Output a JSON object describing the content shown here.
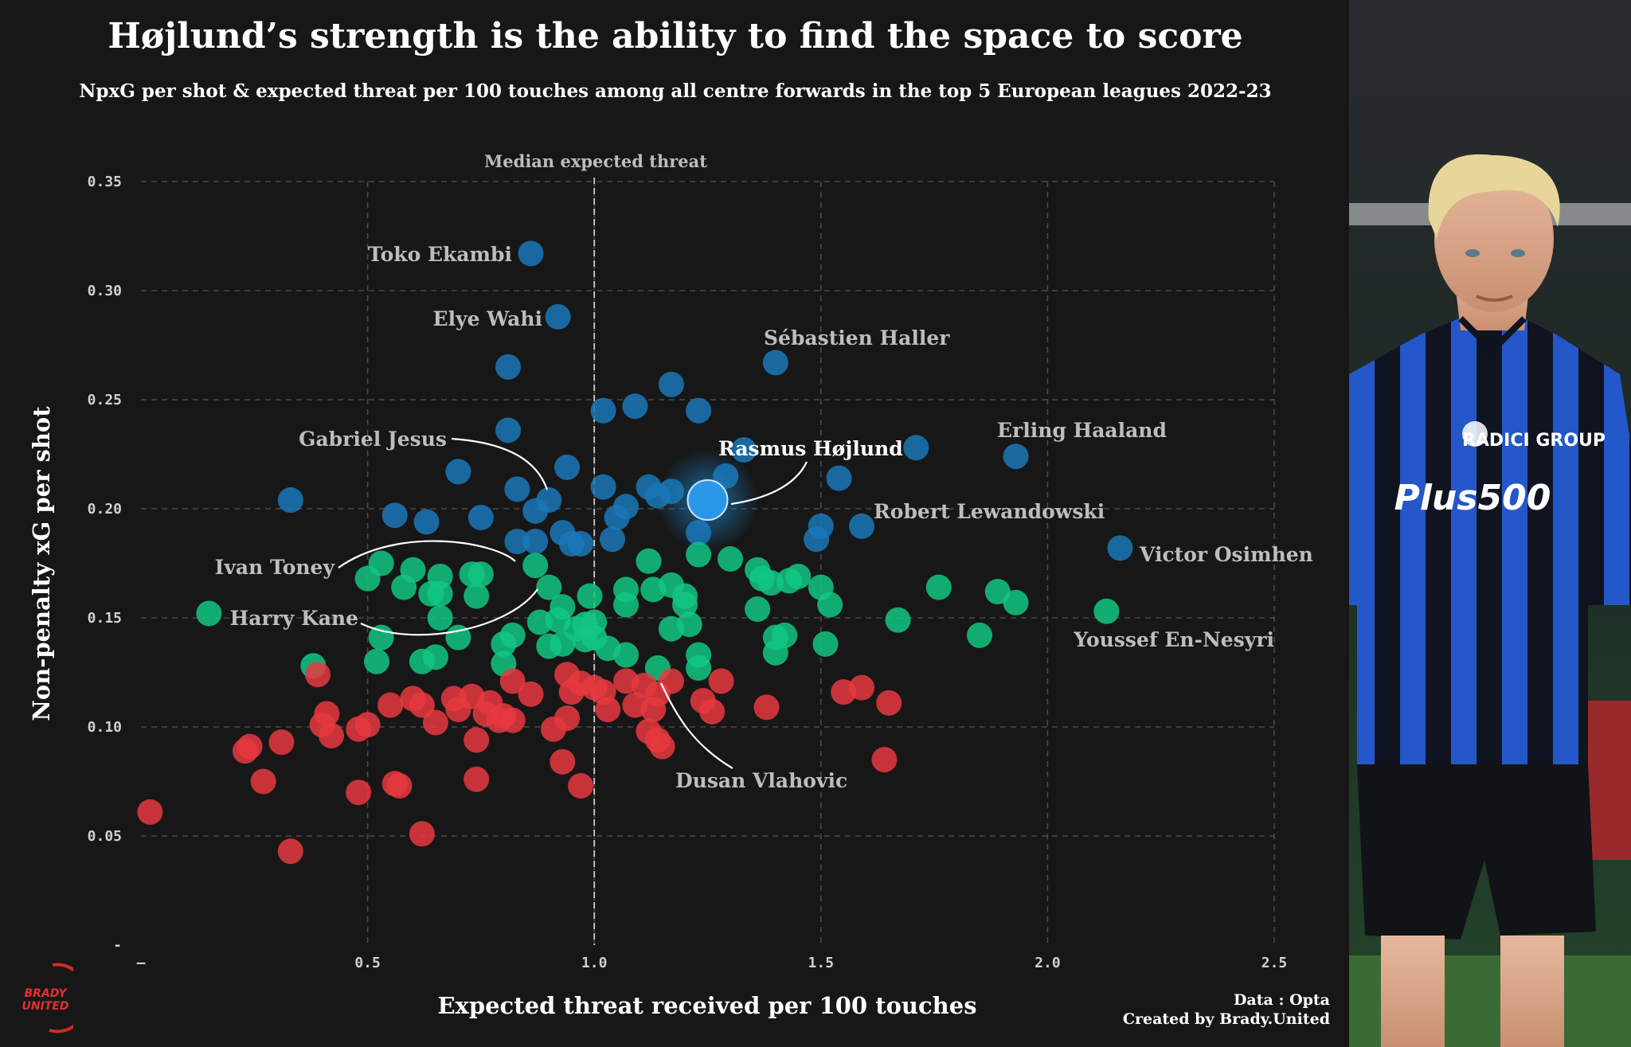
{
  "title": "Højlund’s strength is the ability to find the space to score",
  "subtitle": "NpxG per shot & expected threat per 100 touches among all centre forwards in the top 5 European leagues 2022-23",
  "median_label": "Median expected threat",
  "source_label": "Data : Opta",
  "created_label": "Created by Brady.United",
  "logo_text": [
    "BRADY",
    "UNITED"
  ],
  "photo_badge": "Plus500",
  "photo_sponsor": "RADICI GROUP",
  "chart_data": {
    "type": "scatter",
    "title": "Højlund’s strength is the ability to find the space to score",
    "subtitle": "NpxG per shot & expected threat per 100 touches among all centre forwards in the top 5 European leagues 2022-23",
    "xlabel": "Expected threat received per 100 touches",
    "ylabel": "Non-penalty xG per shot",
    "xlim": [
      0,
      2.5
    ],
    "ylim": [
      0,
      0.35
    ],
    "x_ticks": [
      "–",
      "0.5",
      "1.0",
      "1.5",
      "2.0",
      "2.5"
    ],
    "y_ticks": [
      "-",
      "0.05",
      "0.10",
      "0.15",
      "0.20",
      "0.25",
      "0.30",
      "0.35"
    ],
    "grid": true,
    "median_x": 1.0,
    "colors": {
      "high": "#1a78b8",
      "mid": "#12c784",
      "low": "#e8383f",
      "highlight": "#2a98e8"
    },
    "highlight": {
      "name": "Rasmus Højlund",
      "x": 1.25,
      "y": 0.204
    },
    "labels": [
      {
        "name": "Toko Ekambi",
        "x": 0.86,
        "y": 0.317
      },
      {
        "name": "Elye Wahi",
        "x": 0.92,
        "y": 0.288
      },
      {
        "name": "Sébastien Haller",
        "x": 1.4,
        "y": 0.267
      },
      {
        "name": "Erling Haaland",
        "x": 1.93,
        "y": 0.224
      },
      {
        "name": "Gabriel Jesus",
        "x": 0.89,
        "y": 0.203
      },
      {
        "name": "Robert Lewandowski",
        "x": 1.59,
        "y": 0.192
      },
      {
        "name": "Victor Osimhen",
        "x": 2.16,
        "y": 0.182
      },
      {
        "name": "Ivan Toney",
        "x": 0.85,
        "y": 0.175
      },
      {
        "name": "Harry Kane",
        "x": 0.89,
        "y": 0.164
      },
      {
        "name": "Youssef En-Nesyri",
        "x": 2.13,
        "y": 0.153
      },
      {
        "name": "Dusan Vlahovic",
        "x": 1.14,
        "y": 0.121
      }
    ],
    "points": [
      [
        0.86,
        0.317
      ],
      [
        0.92,
        0.288
      ],
      [
        1.4,
        0.267
      ],
      [
        0.81,
        0.265
      ],
      [
        1.17,
        0.257
      ],
      [
        1.09,
        0.247
      ],
      [
        1.23,
        0.245
      ],
      [
        1.02,
        0.245
      ],
      [
        0.81,
        0.236
      ],
      [
        1.71,
        0.228
      ],
      [
        1.93,
        0.224
      ],
      [
        1.33,
        0.227
      ],
      [
        0.94,
        0.219
      ],
      [
        0.7,
        0.217
      ],
      [
        1.29,
        0.215
      ],
      [
        1.54,
        0.214
      ],
      [
        1.02,
        0.21
      ],
      [
        1.12,
        0.21
      ],
      [
        1.17,
        0.208
      ],
      [
        0.83,
        0.209
      ],
      [
        0.9,
        0.204
      ],
      [
        0.33,
        0.204
      ],
      [
        1.14,
        0.206
      ],
      [
        1.07,
        0.201
      ],
      [
        0.87,
        0.199
      ],
      [
        0.56,
        0.197
      ],
      [
        0.75,
        0.196
      ],
      [
        0.63,
        0.194
      ],
      [
        1.05,
        0.196
      ],
      [
        1.5,
        0.192
      ],
      [
        1.59,
        0.192
      ],
      [
        0.93,
        0.189
      ],
      [
        1.23,
        0.189
      ],
      [
        1.49,
        0.186
      ],
      [
        0.83,
        0.185
      ],
      [
        0.87,
        0.185
      ],
      [
        0.97,
        0.184
      ],
      [
        1.04,
        0.186
      ],
      [
        0.95,
        0.184
      ],
      [
        1.23,
        0.179
      ],
      [
        2.16,
        0.182
      ],
      [
        0.53,
        0.175
      ],
      [
        0.6,
        0.172
      ],
      [
        0.5,
        0.168
      ],
      [
        0.66,
        0.169
      ],
      [
        0.73,
        0.17
      ],
      [
        0.75,
        0.17
      ],
      [
        0.87,
        0.174
      ],
      [
        1.12,
        0.176
      ],
      [
        1.3,
        0.177
      ],
      [
        1.36,
        0.172
      ],
      [
        1.37,
        0.168
      ],
      [
        1.39,
        0.166
      ],
      [
        1.43,
        0.167
      ],
      [
        1.45,
        0.169
      ],
      [
        1.5,
        0.164
      ],
      [
        1.17,
        0.165
      ],
      [
        1.13,
        0.163
      ],
      [
        0.58,
        0.164
      ],
      [
        0.64,
        0.161
      ],
      [
        0.66,
        0.161
      ],
      [
        0.74,
        0.16
      ],
      [
        0.9,
        0.164
      ],
      [
        1.07,
        0.163
      ],
      [
        1.2,
        0.16
      ],
      [
        1.2,
        0.156
      ],
      [
        0.99,
        0.16
      ],
      [
        1.52,
        0.156
      ],
      [
        1.76,
        0.164
      ],
      [
        1.89,
        0.162
      ],
      [
        1.93,
        0.157
      ],
      [
        2.13,
        0.153
      ],
      [
        0.15,
        0.152
      ],
      [
        0.66,
        0.15
      ],
      [
        0.88,
        0.148
      ],
      [
        0.92,
        0.149
      ],
      [
        0.93,
        0.155
      ],
      [
        0.96,
        0.145
      ],
      [
        0.98,
        0.147
      ],
      [
        1.0,
        0.148
      ],
      [
        1.07,
        0.156
      ],
      [
        1.17,
        0.145
      ],
      [
        1.21,
        0.147
      ],
      [
        1.36,
        0.154
      ],
      [
        1.67,
        0.149
      ],
      [
        0.53,
        0.141
      ],
      [
        0.7,
        0.141
      ],
      [
        0.82,
        0.142
      ],
      [
        0.8,
        0.138
      ],
      [
        0.93,
        0.138
      ],
      [
        0.98,
        0.14
      ],
      [
        1.0,
        0.141
      ],
      [
        1.4,
        0.141
      ],
      [
        1.42,
        0.142
      ],
      [
        1.85,
        0.142
      ],
      [
        0.9,
        0.137
      ],
      [
        1.51,
        0.138
      ],
      [
        1.03,
        0.136
      ],
      [
        0.38,
        0.128
      ],
      [
        0.52,
        0.13
      ],
      [
        0.62,
        0.13
      ],
      [
        0.65,
        0.132
      ],
      [
        0.8,
        0.129
      ],
      [
        1.07,
        0.133
      ],
      [
        1.23,
        0.133
      ],
      [
        1.4,
        0.134
      ],
      [
        0.39,
        0.124
      ],
      [
        0.94,
        0.124
      ],
      [
        0.97,
        0.12
      ],
      [
        1.0,
        0.118
      ],
      [
        1.07,
        0.121
      ],
      [
        1.14,
        0.127
      ],
      [
        1.17,
        0.121
      ],
      [
        1.23,
        0.127
      ],
      [
        1.28,
        0.121
      ],
      [
        1.55,
        0.116
      ],
      [
        1.59,
        0.118
      ],
      [
        0.6,
        0.113
      ],
      [
        0.62,
        0.11
      ],
      [
        0.69,
        0.113
      ],
      [
        0.73,
        0.114
      ],
      [
        0.77,
        0.111
      ],
      [
        0.82,
        0.121
      ],
      [
        0.86,
        0.115
      ],
      [
        0.95,
        0.116
      ],
      [
        1.02,
        0.116
      ],
      [
        1.11,
        0.119
      ],
      [
        1.14,
        0.115
      ],
      [
        1.24,
        0.112
      ],
      [
        0.55,
        0.11
      ],
      [
        0.7,
        0.108
      ],
      [
        0.76,
        0.106
      ],
      [
        0.79,
        0.103
      ],
      [
        0.82,
        0.103
      ],
      [
        1.03,
        0.108
      ],
      [
        1.09,
        0.11
      ],
      [
        1.13,
        0.108
      ],
      [
        1.26,
        0.107
      ],
      [
        1.38,
        0.109
      ],
      [
        1.65,
        0.111
      ],
      [
        0.41,
        0.106
      ],
      [
        0.4,
        0.101
      ],
      [
        0.48,
        0.099
      ],
      [
        0.5,
        0.101
      ],
      [
        0.65,
        0.102
      ],
      [
        0.8,
        0.105
      ],
      [
        0.94,
        0.104
      ],
      [
        0.91,
        0.099
      ],
      [
        1.12,
        0.098
      ],
      [
        1.14,
        0.094
      ],
      [
        1.15,
        0.091
      ],
      [
        0.42,
        0.096
      ],
      [
        0.31,
        0.093
      ],
      [
        0.24,
        0.091
      ],
      [
        0.23,
        0.089
      ],
      [
        0.74,
        0.094
      ],
      [
        0.27,
        0.075
      ],
      [
        0.56,
        0.074
      ],
      [
        0.57,
        0.073
      ],
      [
        0.74,
        0.076
      ],
      [
        0.93,
        0.084
      ],
      [
        0.97,
        0.073
      ],
      [
        1.64,
        0.085
      ],
      [
        0.48,
        0.07
      ],
      [
        0.02,
        0.061
      ],
      [
        0.62,
        0.051
      ],
      [
        0.33,
        0.043
      ]
    ]
  }
}
